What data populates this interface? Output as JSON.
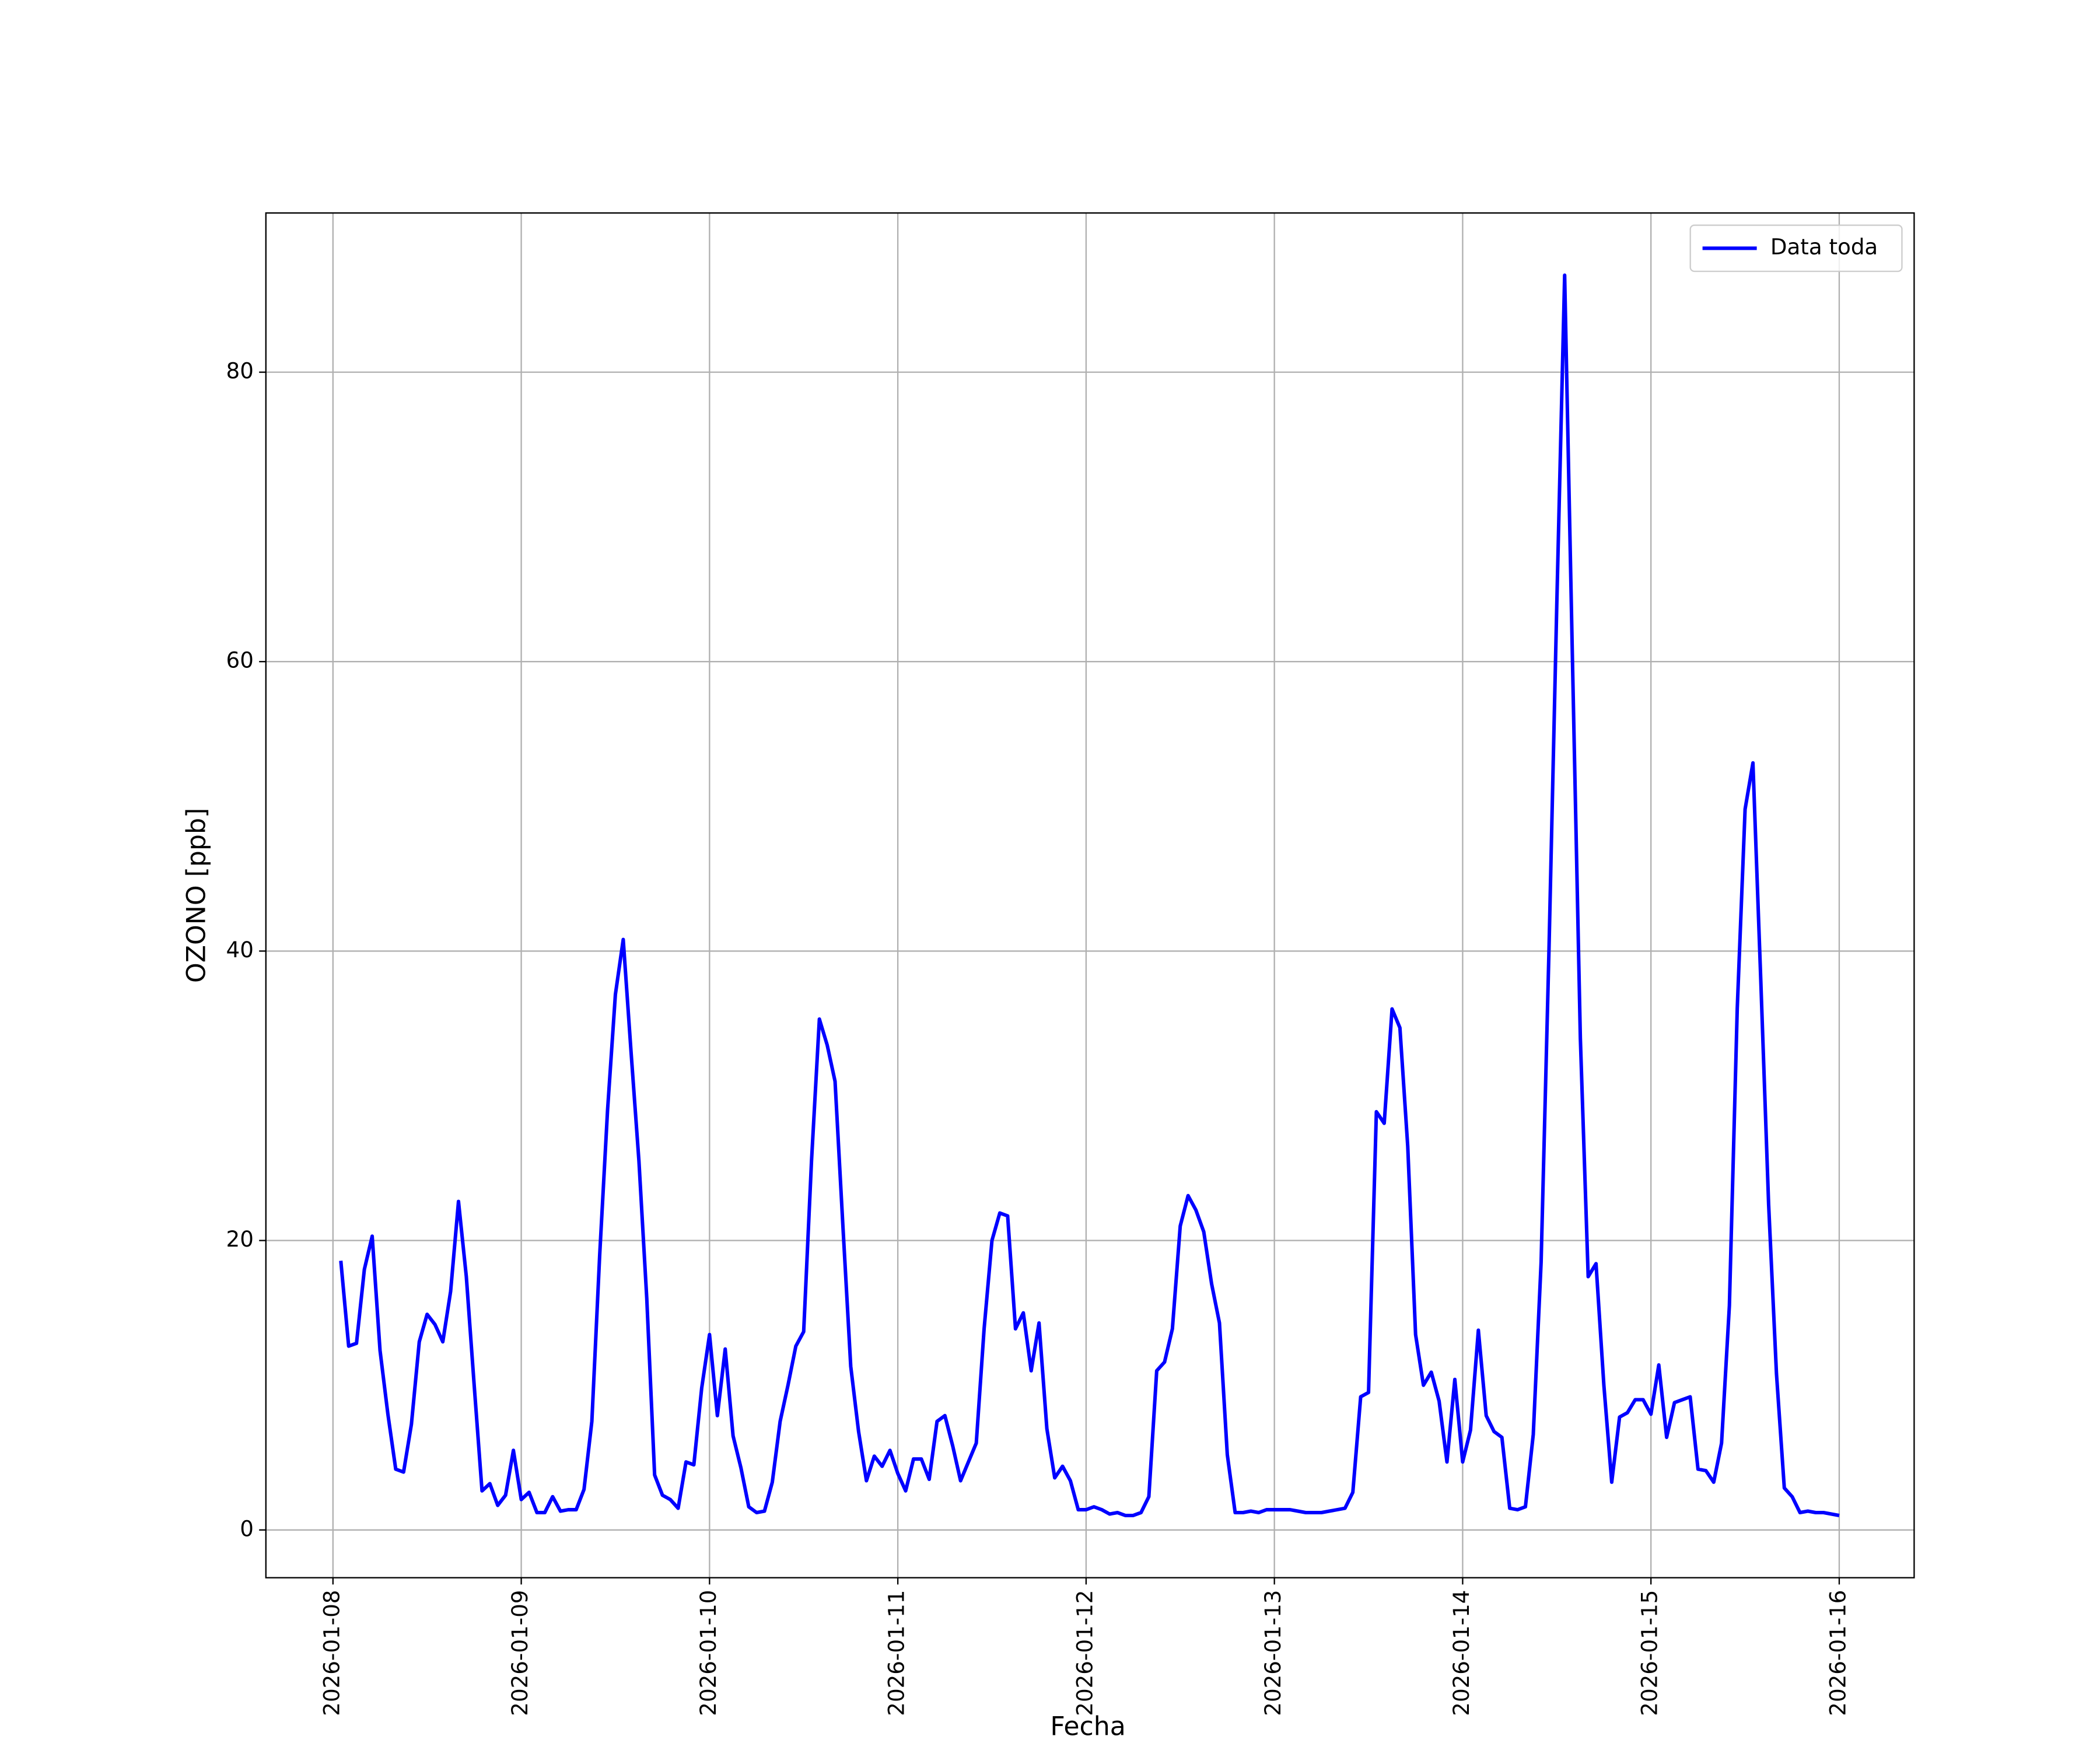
{
  "chart_data": {
    "type": "line",
    "xlabel": "Fecha",
    "ylabel": "OZONO [ppb]",
    "xlim": [
      "2026-01-07 15:27",
      "2026-01-16 09:33"
    ],
    "xticks": [
      "2026-01-08",
      "2026-01-09",
      "2026-01-10",
      "2026-01-11",
      "2026-01-12",
      "2026-01-13",
      "2026-01-14",
      "2026-01-15",
      "2026-01-16"
    ],
    "ylim": [
      -3.3,
      91.0
    ],
    "yticks": [
      0,
      20,
      40,
      60,
      80
    ],
    "grid": true,
    "legend": "upper right",
    "x": [
      "2026-01-08 01:00",
      "2026-01-08 02:00",
      "2026-01-08 03:00",
      "2026-01-08 04:00",
      "2026-01-08 05:00",
      "2026-01-08 06:00",
      "2026-01-08 07:00",
      "2026-01-08 08:00",
      "2026-01-08 09:00",
      "2026-01-08 10:00",
      "2026-01-08 11:00",
      "2026-01-08 12:00",
      "2026-01-08 13:00",
      "2026-01-08 14:00",
      "2026-01-08 15:00",
      "2026-01-08 16:00",
      "2026-01-08 17:00",
      "2026-01-08 18:00",
      "2026-01-08 19:00",
      "2026-01-08 20:00",
      "2026-01-08 21:00",
      "2026-01-08 22:00",
      "2026-01-08 23:00",
      "2026-01-09 00:00",
      "2026-01-09 01:00",
      "2026-01-09 02:00",
      "2026-01-09 03:00",
      "2026-01-09 04:00",
      "2026-01-09 05:00",
      "2026-01-09 06:00",
      "2026-01-09 07:00",
      "2026-01-09 08:00",
      "2026-01-09 09:00",
      "2026-01-09 10:00",
      "2026-01-09 11:00",
      "2026-01-09 12:00",
      "2026-01-09 13:00",
      "2026-01-09 14:00",
      "2026-01-09 15:00",
      "2026-01-09 16:00",
      "2026-01-09 17:00",
      "2026-01-09 18:00",
      "2026-01-09 19:00",
      "2026-01-09 20:00",
      "2026-01-09 21:00",
      "2026-01-09 22:00",
      "2026-01-09 23:00",
      "2026-01-10 00:00",
      "2026-01-10 01:00",
      "2026-01-10 02:00",
      "2026-01-10 03:00",
      "2026-01-10 04:00",
      "2026-01-10 05:00",
      "2026-01-10 06:00",
      "2026-01-10 07:00",
      "2026-01-10 08:00",
      "2026-01-10 09:00",
      "2026-01-10 10:00",
      "2026-01-10 11:00",
      "2026-01-10 12:00",
      "2026-01-10 13:00",
      "2026-01-10 14:00",
      "2026-01-10 15:00",
      "2026-01-10 16:00",
      "2026-01-10 17:00",
      "2026-01-10 18:00",
      "2026-01-10 19:00",
      "2026-01-10 20:00",
      "2026-01-10 21:00",
      "2026-01-10 22:00",
      "2026-01-10 23:00",
      "2026-01-11 00:00",
      "2026-01-11 01:00",
      "2026-01-11 02:00",
      "2026-01-11 03:00",
      "2026-01-11 04:00",
      "2026-01-11 05:00",
      "2026-01-11 06:00",
      "2026-01-11 07:00",
      "2026-01-11 08:00",
      "2026-01-11 09:00",
      "2026-01-11 10:00",
      "2026-01-11 11:00",
      "2026-01-11 12:00",
      "2026-01-11 13:00",
      "2026-01-11 14:00",
      "2026-01-11 15:00",
      "2026-01-11 16:00",
      "2026-01-11 17:00",
      "2026-01-11 18:00",
      "2026-01-11 19:00",
      "2026-01-11 20:00",
      "2026-01-11 21:00",
      "2026-01-11 22:00",
      "2026-01-11 23:00",
      "2026-01-12 00:00",
      "2026-01-12 01:00",
      "2026-01-12 02:00",
      "2026-01-12 03:00",
      "2026-01-12 04:00",
      "2026-01-12 05:00",
      "2026-01-12 06:00",
      "2026-01-12 07:00",
      "2026-01-12 08:00",
      "2026-01-12 09:00",
      "2026-01-12 10:00",
      "2026-01-12 11:00",
      "2026-01-12 12:00",
      "2026-01-12 13:00",
      "2026-01-12 14:00",
      "2026-01-12 15:00",
      "2026-01-12 16:00",
      "2026-01-12 17:00",
      "2026-01-12 18:00",
      "2026-01-12 19:00",
      "2026-01-12 20:00",
      "2026-01-12 21:00",
      "2026-01-12 22:00",
      "2026-01-12 23:00",
      "2026-01-13 00:00",
      "2026-01-13 01:00",
      "2026-01-13 02:00",
      "2026-01-13 03:00",
      "2026-01-13 04:00",
      "2026-01-13 05:00",
      "2026-01-13 06:00",
      "2026-01-13 07:00",
      "2026-01-13 08:00",
      "2026-01-13 09:00",
      "2026-01-13 10:00",
      "2026-01-13 11:00",
      "2026-01-13 12:00",
      "2026-01-13 13:00",
      "2026-01-13 14:00",
      "2026-01-13 15:00",
      "2026-01-13 16:00",
      "2026-01-13 17:00",
      "2026-01-13 18:00",
      "2026-01-13 19:00",
      "2026-01-13 20:00",
      "2026-01-13 21:00",
      "2026-01-13 22:00",
      "2026-01-13 23:00",
      "2026-01-14 00:00",
      "2026-01-14 01:00",
      "2026-01-14 02:00",
      "2026-01-14 03:00",
      "2026-01-14 04:00",
      "2026-01-14 05:00",
      "2026-01-14 06:00",
      "2026-01-14 07:00",
      "2026-01-14 08:00",
      "2026-01-14 09:00",
      "2026-01-14 10:00",
      "2026-01-14 11:00",
      "2026-01-14 12:00",
      "2026-01-14 13:00",
      "2026-01-14 14:00",
      "2026-01-14 15:00",
      "2026-01-14 16:00",
      "2026-01-14 17:00",
      "2026-01-14 18:00",
      "2026-01-14 19:00",
      "2026-01-14 20:00",
      "2026-01-14 21:00",
      "2026-01-14 22:00",
      "2026-01-14 23:00",
      "2026-01-15 00:00",
      "2026-01-15 01:00",
      "2026-01-15 02:00",
      "2026-01-15 03:00",
      "2026-01-15 04:00",
      "2026-01-15 05:00",
      "2026-01-15 06:00",
      "2026-01-15 07:00",
      "2026-01-15 08:00",
      "2026-01-15 09:00",
      "2026-01-15 10:00",
      "2026-01-15 11:00",
      "2026-01-15 12:00",
      "2026-01-15 13:00",
      "2026-01-15 14:00",
      "2026-01-15 15:00",
      "2026-01-15 16:00",
      "2026-01-15 17:00",
      "2026-01-15 18:00",
      "2026-01-15 19:00",
      "2026-01-15 20:00",
      "2026-01-15 21:00",
      "2026-01-15 22:00",
      "2026-01-15 23:00",
      "2026-01-16 00:00"
    ],
    "series": [
      {
        "name": "Data toda",
        "color": "#0000ff",
        "values": [
          18.6,
          12.7,
          12.9,
          18,
          20.3,
          12.4,
          8,
          4.2,
          4,
          7.3,
          13,
          14.9,
          14.2,
          13,
          16.5,
          22.7,
          17.5,
          10,
          2.7,
          3.2,
          1.7,
          2.4,
          5.5,
          2.1,
          2.6,
          1.2,
          1.2,
          2.3,
          1.3,
          1.4,
          1.4,
          2.8,
          7.5,
          19,
          29,
          37,
          40.8,
          33,
          25.5,
          16,
          3.8,
          2.4,
          2.1,
          1.5,
          4.7,
          4.5,
          9.8,
          13.5,
          7.9,
          12.5,
          6.5,
          4.3,
          1.6,
          1.2,
          1.3,
          3.3,
          7.5,
          10,
          12.7,
          13.7,
          25.5,
          35.3,
          33.5,
          31,
          21,
          11.3,
          6.8,
          3.4,
          5.1,
          4.4,
          5.5,
          3.9,
          2.7,
          4.9,
          4.9,
          3.5,
          7.5,
          7.9,
          5.8,
          3.4,
          4.7,
          6,
          13.9,
          20,
          21.9,
          21.7,
          13.9,
          15,
          11,
          14.3,
          7,
          3.6,
          4.4,
          3.4,
          1.4,
          1.4,
          1.6,
          1.4,
          1.1,
          1.2,
          1,
          1,
          1.2,
          2.3,
          11,
          11.6,
          13.9,
          21,
          23.1,
          22.1,
          20.6,
          17,
          14.3,
          5.2,
          1.2,
          1.2,
          1.3,
          1.2,
          1.4,
          1.4,
          1.4,
          1.4,
          1.3,
          1.2,
          1.2,
          1.2,
          1.3,
          1.4,
          1.5,
          2.6,
          9.2,
          9.5,
          28.9,
          28.1,
          36,
          34.7,
          26.5,
          13.5,
          10,
          10.9,
          8.9,
          4.7,
          10.4,
          4.7,
          6.9,
          13.8,
          7.9,
          6.8,
          6.4,
          1.5,
          1.4,
          1.6,
          6.6,
          18.5,
          40,
          64,
          86.7,
          60,
          34,
          17.5,
          18.4,
          10,
          3.3,
          7.8,
          8.1,
          9,
          9,
          8,
          11.4,
          6.4,
          8.8,
          9,
          9.2,
          4.2,
          4.1,
          3.3,
          6,
          15.5,
          36,
          49.8,
          53,
          38,
          22.5,
          10.8,
          2.9,
          2.3,
          1.2,
          1.3,
          1.2,
          1.2,
          1.1,
          1.0
        ]
      }
    ]
  }
}
